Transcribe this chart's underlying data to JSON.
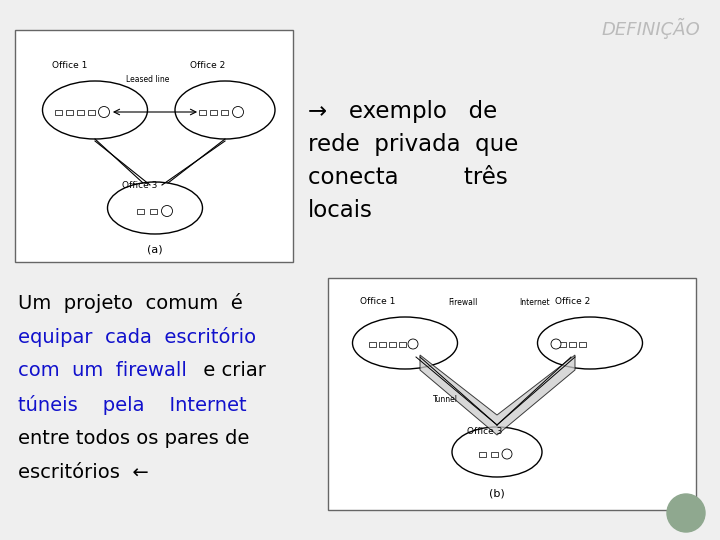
{
  "background_color": "#efefef",
  "title": "DEFINIÇÃO",
  "title_color": "#bbbbbb",
  "title_fontsize": 13,
  "arrow_text_line1": "→   exemplo   de",
  "arrow_text_line2": "rede  privada  que",
  "arrow_text_line3": "conecta         três",
  "arrow_text_line4": "locais",
  "text_color_black": "#111111",
  "text_color_blue": "#1111cc",
  "bottom_left_line1": "Um  projeto  comum  é",
  "bottom_left_line2_blue": "equipar  cada  escritório",
  "bottom_left_line3_blue": "com  um  firewall",
  "bottom_left_line3_black": " e criar",
  "bottom_left_line4_blue": "túneis    pela    Internet",
  "bottom_left_line5_black": "entre todos os pares de",
  "bottom_left_line6_black": "escritórios  ←",
  "circle_color": "#8fa88f",
  "fontsize_main": 14,
  "fontsize_small": 6.5,
  "box_edge_color": "#666666"
}
